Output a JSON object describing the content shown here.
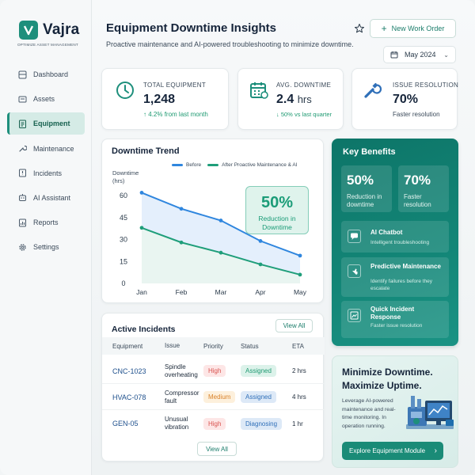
{
  "brand": {
    "name": "Vajra",
    "tagline": "OPTIMIZE ASSET MANAGEMENT"
  },
  "sidebar": {
    "items": [
      {
        "label": "Dashboard",
        "icon": "grid-icon",
        "active": false
      },
      {
        "label": "Assets",
        "icon": "box-icon",
        "active": false
      },
      {
        "label": "Equipment",
        "icon": "clipboard-icon",
        "active": true
      },
      {
        "label": "Maintenance",
        "icon": "wrench-icon",
        "active": false
      },
      {
        "label": "Incidents",
        "icon": "alert-icon",
        "active": false
      },
      {
        "label": "AI Assistant",
        "icon": "robot-icon",
        "active": false
      },
      {
        "label": "Reports",
        "icon": "report-icon",
        "active": false
      },
      {
        "label": "Settings",
        "icon": "gear-icon",
        "active": false
      }
    ]
  },
  "header": {
    "title": "Equipment Downtime Insights",
    "subtitle": "Proactive maintenance and AI-powered troubleshooting to minimize downtime.",
    "new_work_order": "New Work Order",
    "month": "May 2024"
  },
  "stats": [
    {
      "label": "TOTAL EQUIPMENT",
      "value": "1,248",
      "unit": "",
      "note": "4.2% from last month",
      "arrow": "↑"
    },
    {
      "label": "AVG. DOWNTIME",
      "value": "2.4",
      "unit": "hrs",
      "note": "50% vs last quarter",
      "arrow": "↓"
    },
    {
      "label": "ISSUE RESOLUTION",
      "value": "70%",
      "unit": "",
      "note": "Faster resolution",
      "arrow": ""
    }
  ],
  "chart_data": {
    "type": "line",
    "title": "Downtime Trend",
    "ylabel": "Downtime (hrs)",
    "xlabel": "",
    "categories": [
      "Jan",
      "Feb",
      "Mar",
      "Apr",
      "May"
    ],
    "x_positions": [
      0,
      1,
      2,
      3,
      4
    ],
    "yticks": [
      0,
      15,
      30,
      45,
      60
    ],
    "ylim": [
      0,
      66
    ],
    "series": [
      {
        "name": "Before",
        "color": "#2f86de",
        "values": [
          62,
          51,
          43,
          29,
          19
        ]
      },
      {
        "name": "After Proactive Maintenance & AI",
        "color": "#1f9e7a",
        "values": [
          38,
          28,
          21,
          13,
          6
        ]
      }
    ],
    "callout": {
      "value": "50%",
      "text": "Reduction in Downtime"
    }
  },
  "incidents": {
    "title": "Active Incidents",
    "view_all_top": "View All",
    "view_all_bottom": "View All",
    "columns": [
      "Equipment",
      "Issue",
      "Priority",
      "Status",
      "ETA"
    ],
    "rows": [
      {
        "equipment": "CNC-1023",
        "issue": "Spindle overheating",
        "priority": "High",
        "status": "Assigned",
        "eta": "2 hrs"
      },
      {
        "equipment": "HVAC-078",
        "issue": "Compressor fault",
        "priority": "Medium",
        "status": "Assigned",
        "eta": "4 hrs"
      },
      {
        "equipment": "GEN-05",
        "issue": "Unusual vibration",
        "priority": "High",
        "status": "Diagnosing",
        "eta": "1 hr"
      }
    ]
  },
  "benefits": {
    "title": "Key Benefits",
    "metrics": [
      {
        "value": "50%",
        "label": "Reduction in downtime"
      },
      {
        "value": "70%",
        "label": "Faster resolution"
      }
    ],
    "features": [
      {
        "title": "AI Chatbot",
        "desc": "Intelligent troubleshooting",
        "icon": "chat-icon"
      },
      {
        "title": "Predictive Maintenance",
        "desc": "Identify failures before they escalate",
        "icon": "hand-icon"
      },
      {
        "title": "Quick Incident Response",
        "desc": "Faster issue resolution",
        "icon": "image-chart-icon"
      }
    ]
  },
  "promo": {
    "title": "Minimize Downtime. Maximize Uptime.",
    "desc": "Leverage AI-powered maintenance and real-time monitoring. In operation running.",
    "button": "Explore Equipment Module"
  },
  "colors": {
    "accent": "#1e8f7c",
    "high_bg": "#fde6e6",
    "high_fg": "#d9534f",
    "medium_bg": "#fdf0dc",
    "medium_fg": "#d9822b",
    "assigned_bg": "#dcf2ea",
    "assigned_fg": "#1f9a72",
    "assigned2_bg": "#dde9f7",
    "assigned2_fg": "#2f6fb8",
    "diagnosing_bg": "#dde9f7",
    "diagnosing_fg": "#2f6fb8"
  }
}
